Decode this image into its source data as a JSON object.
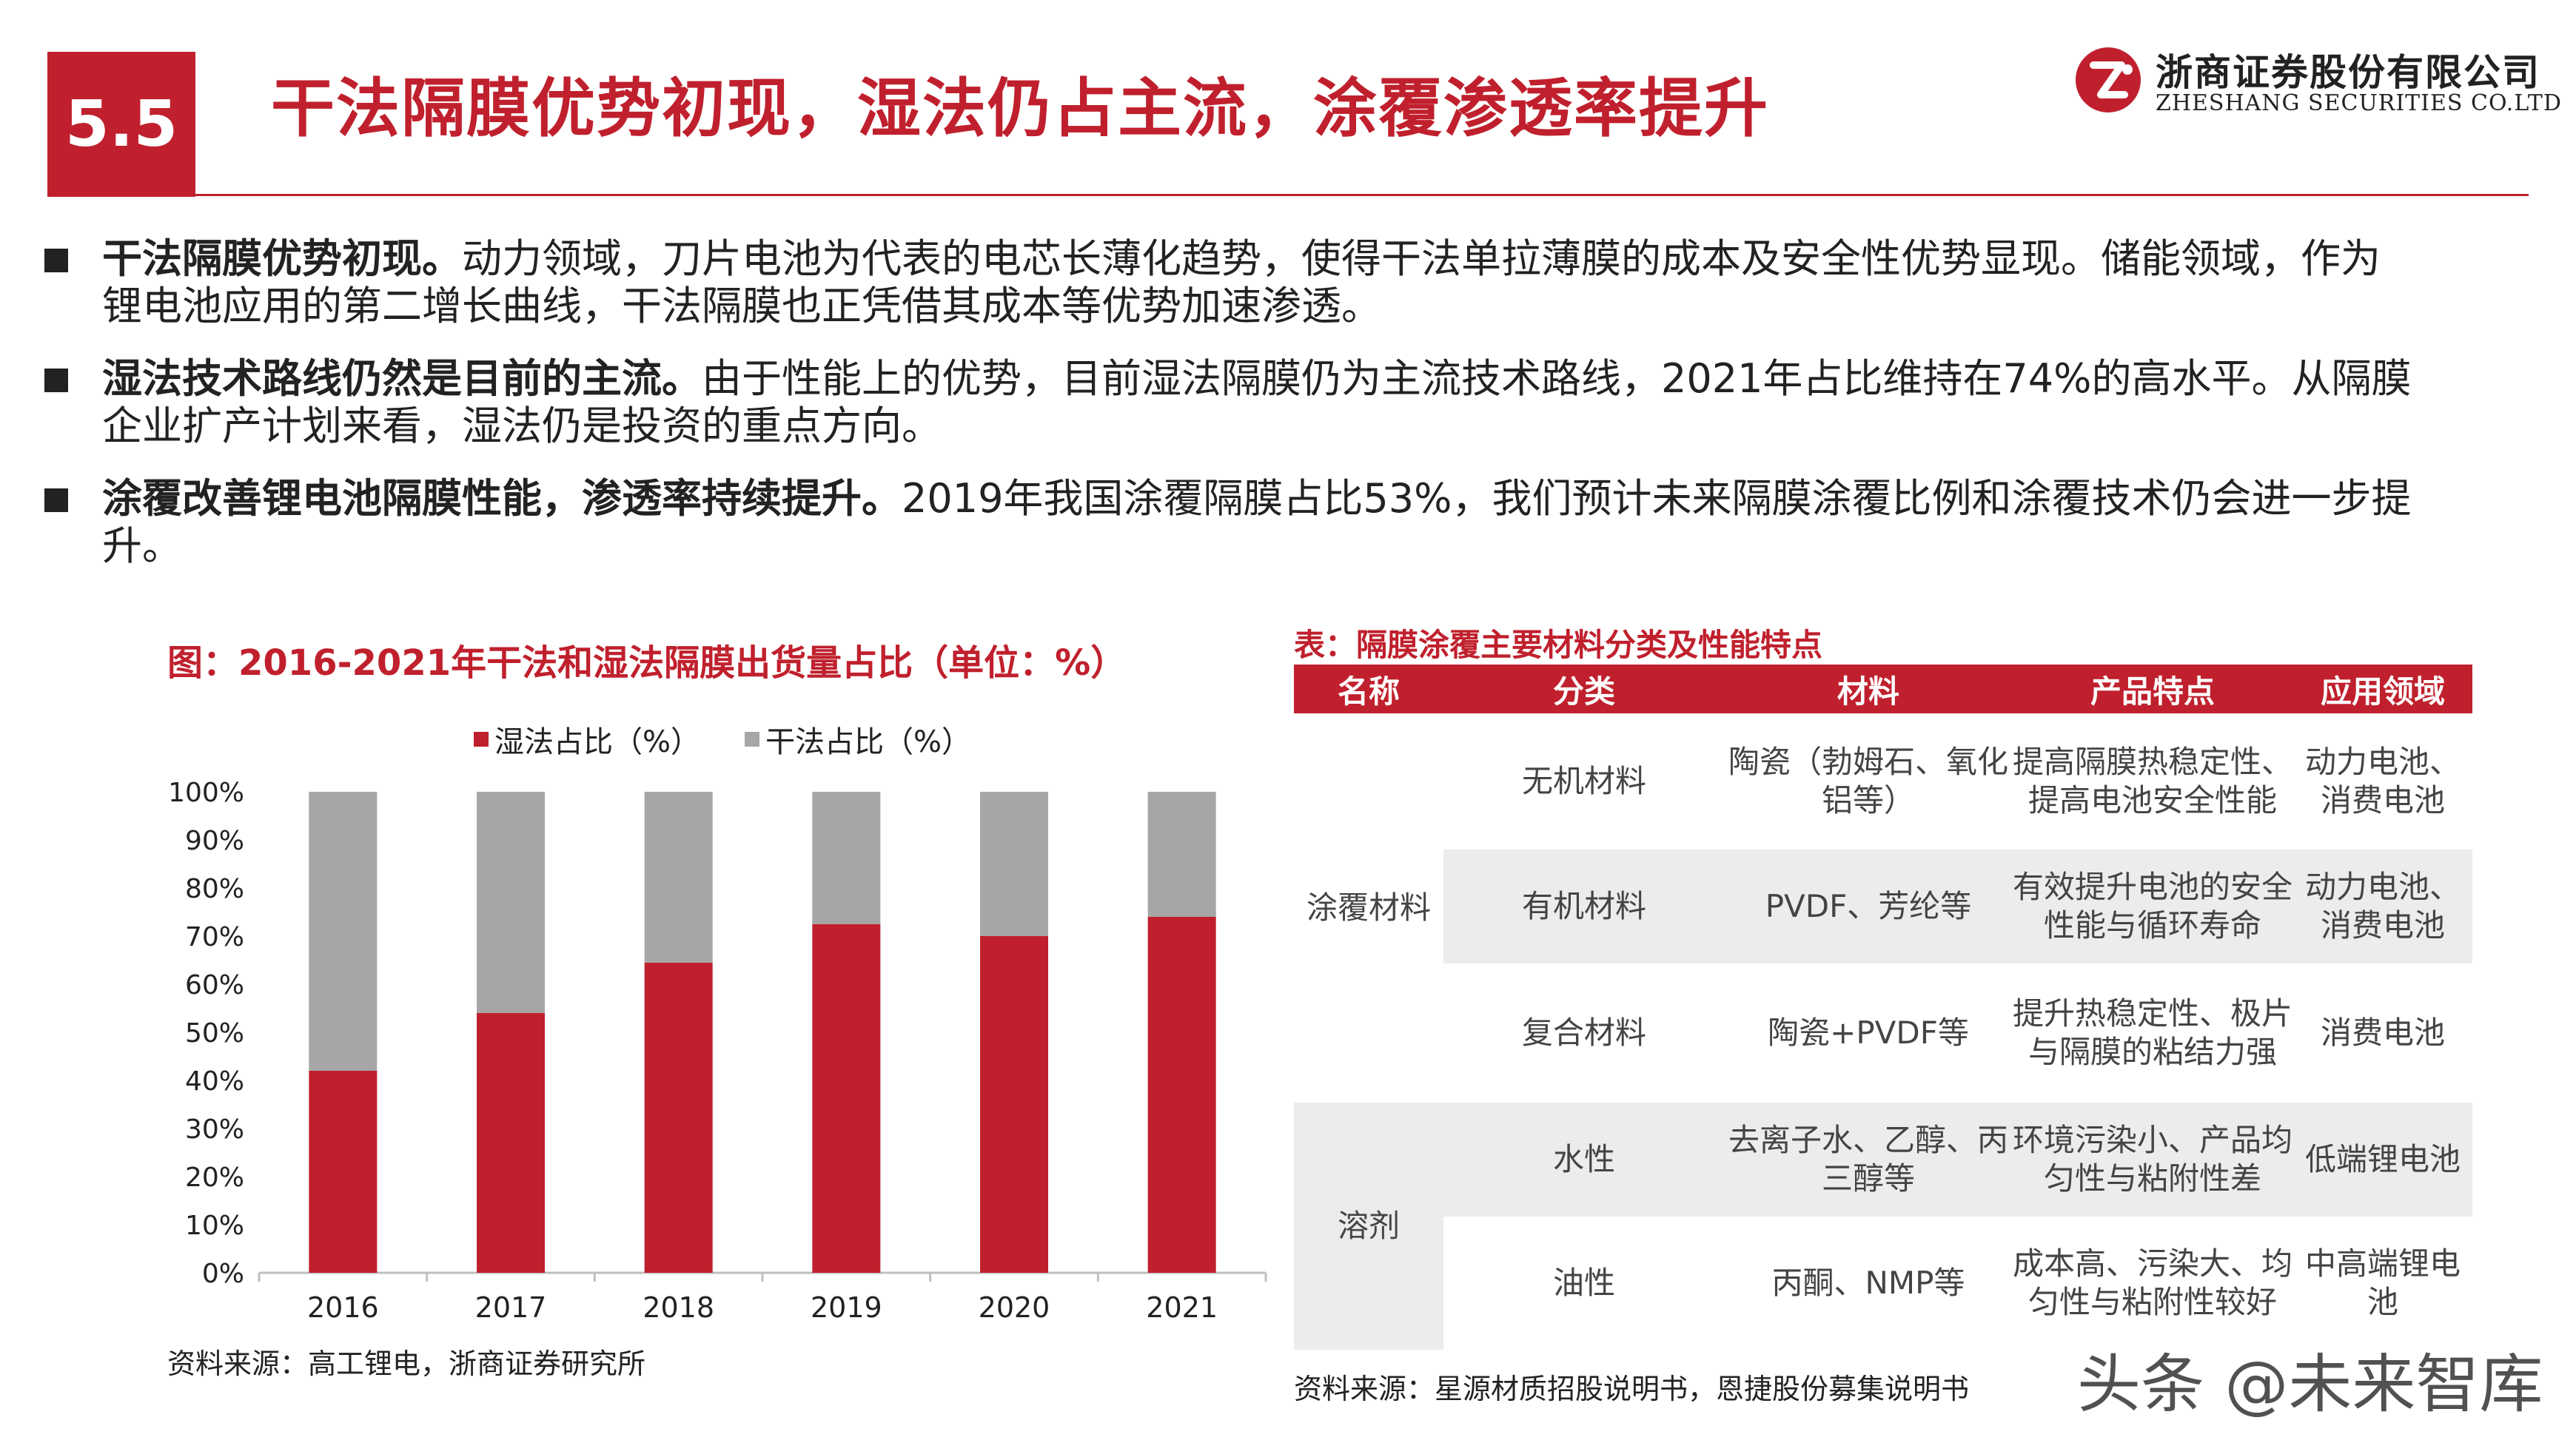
{
  "header": {
    "section_number": "5.5",
    "title": "干法隔膜优势初现，湿法仍占主流，涂覆渗透率提升",
    "company_cn": "浙商证券股份有限公司",
    "company_en": "ZHESHANG SECURITIES CO.LTD",
    "brand_color": "#c0202d"
  },
  "bullets": [
    {
      "bold": "干法隔膜优势初现。",
      "text": "动力领域，刀片电池为代表的电芯长薄化趋势，使得干法单拉薄膜的成本及安全性优势显现。储能领域，作为锂电池应用的第二增长曲线，干法隔膜也正凭借其成本等优势加速渗透。"
    },
    {
      "bold": "湿法技术路线仍然是目前的主流。",
      "text": "由于性能上的优势，目前湿法隔膜仍为主流技术路线，2021年占比维持在74%的高水平。从隔膜企业扩产计划来看，湿法仍是投资的重点方向。"
    },
    {
      "bold": "涂覆改善锂电池隔膜性能，渗透率持续提升。",
      "text": "2019年我国涂覆隔膜占比53%，我们预计未来隔膜涂覆比例和涂覆技术仍会进一步提升。"
    }
  ],
  "chart": {
    "title": "图：2016-2021年干法和湿法隔膜出货量占比（单位：%）",
    "source": "资料来源：高工锂电，浙商证券研究所"
  },
  "chart_data": {
    "type": "bar",
    "stacked": true,
    "categories": [
      "2016",
      "2017",
      "2018",
      "2019",
      "2020",
      "2021"
    ],
    "series": [
      {
        "name": "湿法占比（%）",
        "values": [
          42,
          54,
          64.5,
          72.5,
          70,
          74
        ],
        "color": "#c0202d"
      },
      {
        "name": "干法占比（%）",
        "values": [
          58,
          46,
          35.5,
          27.5,
          30,
          26
        ],
        "color": "#a6a6a6"
      }
    ],
    "ylim": [
      0,
      100
    ],
    "yticks": [
      "0%",
      "10%",
      "20%",
      "30%",
      "40%",
      "50%",
      "60%",
      "70%",
      "80%",
      "90%",
      "100%"
    ],
    "grid": false,
    "legend": "top"
  },
  "table": {
    "title": "表：隔膜涂覆主要材料分类及性能特点",
    "headers": [
      "名称",
      "分类",
      "材料",
      "产品特点",
      "应用领域"
    ],
    "groups": [
      "涂覆材料",
      "溶剂"
    ],
    "rows": [
      {
        "category": "无机材料",
        "material": "陶瓷（勃姆石、氧化铝等）",
        "feature": "提高隔膜热稳定性、提高电池安全性能",
        "application": "动力电池、消费电池"
      },
      {
        "category": "有机材料",
        "material": "PVDF、芳纶等",
        "feature": "有效提升电池的安全性能与循环寿命",
        "application": "动力电池、消费电池"
      },
      {
        "category": "复合材料",
        "material": "陶瓷+PVDF等",
        "feature": "提升热稳定性、极片与隔膜的粘结力强",
        "application": "消费电池"
      },
      {
        "category": "水性",
        "material": "去离子水、乙醇、丙三醇等",
        "feature": "环境污染小、产品均匀性与粘附性差",
        "application": "低端锂电池"
      },
      {
        "category": "油性",
        "material": "丙酮、NMP等",
        "feature": "成本高、污染大、均匀性与粘附性较好",
        "application": "中高端锂电池"
      }
    ],
    "source": "资料来源：星源材质招股说明书，恩捷股份募集说明书"
  },
  "watermark": "头条 @未来智库"
}
